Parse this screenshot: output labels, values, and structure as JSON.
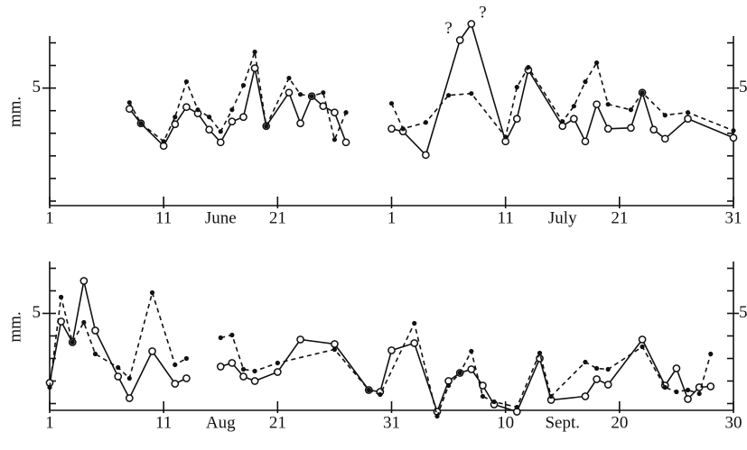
{
  "chart_data": [
    {
      "type": "line",
      "ylabel": "mm.",
      "xlim": [
        1,
        61
      ],
      "ylim": [
        -0.2,
        7.3
      ],
      "xticks": [
        1,
        11,
        21,
        {
          "value": 31,
          "label": "1"
        },
        {
          "value": 41,
          "label": "11"
        },
        {
          "value": 51,
          "label": "21"
        },
        {
          "value": 61,
          "label": "31"
        }
      ],
      "month_labels": [
        {
          "value": 16,
          "label": "June"
        },
        {
          "value": 46,
          "label": "July"
        }
      ],
      "yticks": [
        5
      ],
      "minor_yticks": [
        0,
        1,
        2,
        3,
        4,
        6,
        7
      ],
      "annotations": [
        {
          "x": 36,
          "y": 7.2,
          "label": "?"
        },
        {
          "x": 39,
          "y": 7.9,
          "label": "?"
        }
      ],
      "series": [
        {
          "style": "solid",
          "color": "#111",
          "x": [
            8,
            9,
            11,
            12,
            13,
            14,
            15,
            16,
            17,
            18,
            19,
            20,
            22,
            23,
            24,
            25,
            26,
            27,
            29,
            31,
            32,
            34,
            37,
            38,
            41,
            42,
            43,
            46,
            47,
            48,
            49,
            50,
            52,
            53,
            54,
            55,
            57,
            61
          ],
          "values": [
            4.08,
            3.44,
            2.44,
            3.4,
            4.16,
            3.88,
            3.16,
            2.6,
            3.52,
            3.72,
            5.88,
            3.32,
            4.8,
            3.44,
            4.64,
            4.2,
            3.92,
            2.6,
            null,
            3.2,
            3.08,
            2.04,
            7.12,
            7.84,
            2.64,
            3.64,
            5.8,
            3.32,
            3.64,
            2.64,
            4.28,
            3.2,
            3.24,
            4.8,
            3.16,
            2.76,
            3.64,
            2.8
          ]
        },
        {
          "style": "dashed",
          "color": "#111",
          "x": [
            8,
            9,
            11,
            12,
            13,
            14,
            15,
            16,
            17,
            18,
            19,
            20,
            22,
            23,
            24,
            25,
            26,
            27,
            29,
            31,
            32,
            34,
            36,
            38,
            41,
            42,
            43,
            46,
            47,
            48,
            49,
            50,
            52,
            53,
            55,
            57,
            61
          ],
          "values": [
            4.36,
            3.44,
            2.64,
            3.72,
            5.28,
            4.04,
            3.72,
            3.08,
            4.04,
            5.12,
            6.6,
            3.32,
            5.44,
            4.72,
            4.64,
            4.8,
            2.72,
            3.92,
            null,
            4.32,
            3.2,
            3.48,
            4.68,
            4.76,
            2.84,
            5.04,
            5.92,
            3.52,
            4.2,
            5.28,
            6.12,
            4.28,
            4.04,
            4.8,
            3.8,
            3.92,
            3.12
          ]
        }
      ]
    },
    {
      "type": "line",
      "ylabel": "mm.",
      "xlim": [
        1,
        61
      ],
      "ylim": [
        0.7,
        7.3
      ],
      "xticks": [
        1,
        11,
        21,
        31,
        {
          "value": 41,
          "label": "10"
        },
        {
          "value": 51,
          "label": "20"
        },
        {
          "value": 61,
          "label": "30"
        }
      ],
      "month_labels": [
        {
          "value": 16,
          "label": "Aug"
        },
        {
          "value": 46,
          "label": "Sept."
        }
      ],
      "yticks": [
        5
      ],
      "minor_yticks": [
        1,
        2,
        3,
        4,
        6,
        7
      ],
      "series": [
        {
          "style": "solid",
          "color": "#111",
          "x": [
            1,
            2,
            3,
            4,
            5,
            7,
            8,
            10,
            12,
            13,
            14,
            16,
            17,
            18,
            19,
            21,
            23,
            26,
            29,
            30,
            31,
            33,
            35,
            36,
            37,
            38,
            39,
            40,
            42,
            44,
            45,
            48,
            49,
            50,
            53,
            55,
            56,
            57,
            58,
            59
          ],
          "values": [
            1.92,
            4.64,
            3.72,
            6.44,
            4.24,
            2.2,
            1.24,
            3.32,
            1.88,
            2.12,
            null,
            2.64,
            2.8,
            2.2,
            2.0,
            2.4,
            3.84,
            3.64,
            1.6,
            1.52,
            3.36,
            3.68,
            0.64,
            2.0,
            2.36,
            2.52,
            1.8,
            0.96,
            0.64,
            3.0,
            1.16,
            1.32,
            2.08,
            1.84,
            3.84,
            1.8,
            2.56,
            1.2,
            1.72,
            1.76
          ]
        },
        {
          "style": "dashed",
          "color": "#111",
          "x": [
            1,
            2,
            3,
            4,
            5,
            7,
            8,
            10,
            12,
            13,
            14,
            16,
            17,
            18,
            19,
            21,
            26,
            29,
            30,
            33,
            35,
            36,
            37,
            38,
            39,
            40,
            42,
            44,
            45,
            48,
            49,
            50,
            53,
            55,
            56,
            57,
            58,
            59
          ],
          "values": [
            1.72,
            5.72,
            3.72,
            4.6,
            3.2,
            2.6,
            2.12,
            5.92,
            2.72,
            3.0,
            null,
            3.92,
            4.04,
            2.52,
            2.44,
            2.8,
            3.4,
            1.6,
            1.4,
            4.56,
            0.44,
            1.8,
            2.36,
            3.32,
            1.32,
            1.08,
            0.84,
            3.24,
            1.32,
            2.84,
            2.56,
            2.52,
            3.52,
            1.72,
            1.52,
            1.6,
            1.44,
            3.2
          ]
        }
      ]
    }
  ]
}
